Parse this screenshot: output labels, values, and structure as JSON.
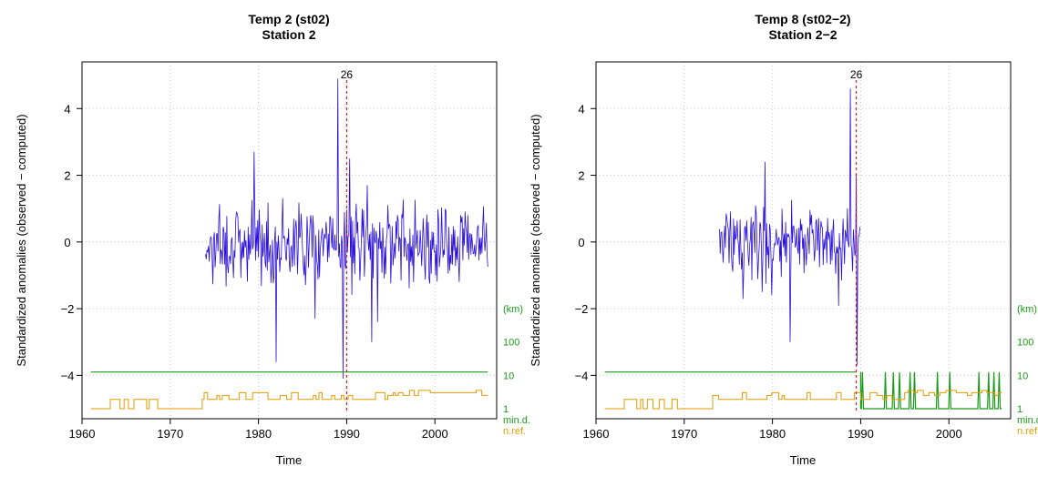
{
  "chart_data": [
    {
      "type": "line",
      "title": "Temp   2 (st02)",
      "subtitle": "Station 2",
      "xlabel": "Time",
      "ylabel": "Standardized anomalies (observed − computed)",
      "xlim": [
        1960,
        2007
      ],
      "ylim": [
        -5.3,
        5.4
      ],
      "xticks": [
        "1960",
        "1970",
        "1980",
        "1990",
        "2000"
      ],
      "yticks": [
        "−4",
        "−2",
        "0",
        "2",
        "4"
      ],
      "grid": true,
      "break": {
        "x": 1990,
        "label": "26"
      },
      "series": [
        {
          "type": "anomaly",
          "start": 1974,
          "end": 2006,
          "seed": 7,
          "spikes": [
            [
              1979.5,
              2.7
            ],
            [
              1982,
              -3.6
            ],
            [
              1989,
              4.9
            ],
            [
              1989.6,
              -4.1
            ],
            [
              1990.3,
              2.5
            ],
            [
              1992.8,
              -3.0
            ],
            [
              1993.5,
              -2.4
            ],
            [
              1986.4,
              -2.3
            ]
          ]
        },
        {
          "type": "min_distance",
          "color": "#1a9a1a",
          "segments": [
            [
              1961,
              2006,
              -3.9
            ]
          ]
        },
        {
          "type": "n_ref",
          "color": "#e69a00",
          "start": 1961,
          "end": 2006,
          "seed": 3
        }
      ],
      "right_axis": {
        "unit": "(km)",
        "ticks": [
          "100",
          "10",
          "1"
        ],
        "label1": "min.d.",
        "label2": "n.ref."
      }
    },
    {
      "type": "line",
      "title": "Temp   8 (st02−2)",
      "subtitle": "Station 2−2",
      "xlabel": "Time",
      "ylabel": "Standardized anomalies (observed − computed)",
      "xlim": [
        1960,
        2007
      ],
      "ylim": [
        -5.3,
        5.4
      ],
      "xticks": [
        "1960",
        "1970",
        "1980",
        "1990",
        "2000"
      ],
      "yticks": [
        "−4",
        "−2",
        "0",
        "2",
        "4"
      ],
      "grid": true,
      "break": {
        "x": 1989.5,
        "label": "26"
      },
      "series": [
        {
          "type": "anomaly",
          "start": 1974,
          "end": 1989.9,
          "seed": 11,
          "spikes": [
            [
              1979.2,
              2.4
            ],
            [
              1982,
              -3.0
            ],
            [
              1988.8,
              4.6
            ],
            [
              1989.6,
              -3.7
            ]
          ]
        },
        {
          "type": "min_distance",
          "color": "#1a9a1a",
          "segments": [
            [
              1961,
              1989.5,
              -3.9
            ]
          ],
          "pulses_from": 1990,
          "pulses_to": 2006
        },
        {
          "type": "n_ref",
          "color": "#e69a00",
          "start": 1961,
          "end": 2006,
          "seed": 5
        }
      ],
      "right_axis": {
        "unit": "(km)",
        "ticks": [
          "100",
          "10",
          "1"
        ],
        "label1": "min.d.",
        "label2": "n.ref."
      }
    }
  ]
}
